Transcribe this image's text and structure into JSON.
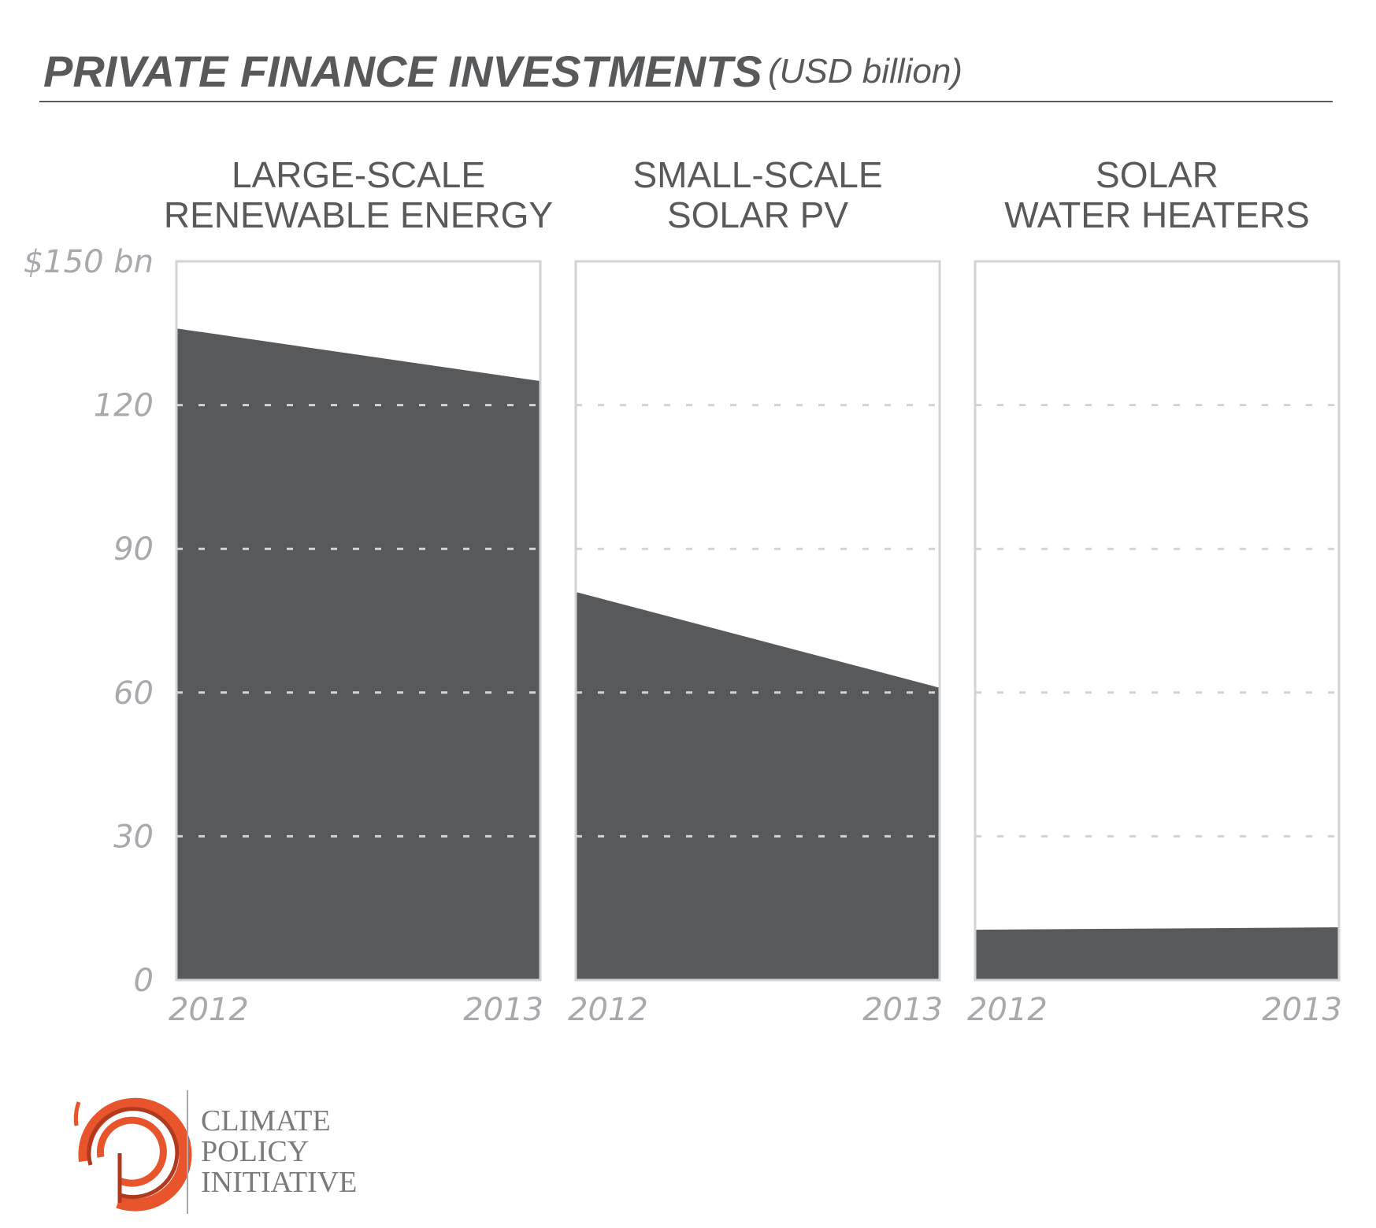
{
  "header": {
    "title": "PRIVATE FINANCE INVESTMENTS",
    "unit": "(USD billion)"
  },
  "chart_data": {
    "type": "area",
    "ylim": [
      0,
      150
    ],
    "yticks": [
      {
        "value": 0,
        "label": "0"
      },
      {
        "value": 30,
        "label": "30"
      },
      {
        "value": 60,
        "label": "60"
      },
      {
        "value": 90,
        "label": "90"
      },
      {
        "value": 120,
        "label": "120"
      },
      {
        "value": 150,
        "label": "$150 bn"
      }
    ],
    "x": [
      "2012",
      "2013"
    ],
    "grid": true,
    "panels": [
      {
        "title_lines": [
          "LARGE-SCALE",
          "RENEWABLE ENERGY"
        ],
        "values": [
          136,
          125
        ]
      },
      {
        "title_lines": [
          "SMALL-SCALE",
          "SOLAR PV"
        ],
        "values": [
          81,
          61
        ]
      },
      {
        "title_lines": [
          "SOLAR",
          "WATER HEATERS"
        ],
        "values": [
          10.5,
          11
        ]
      }
    ]
  },
  "colors": {
    "area": "#58595b",
    "frame": "#d1d3d4",
    "grid": "#d1d3d4",
    "text": "#58595b",
    "tick": "#a7a9ac",
    "logo_orange": "#e8542b",
    "logo_dark": "#b03a1e"
  },
  "logo": {
    "lines": [
      "CLIMATE",
      "POLICY",
      "INITIATIVE"
    ]
  }
}
